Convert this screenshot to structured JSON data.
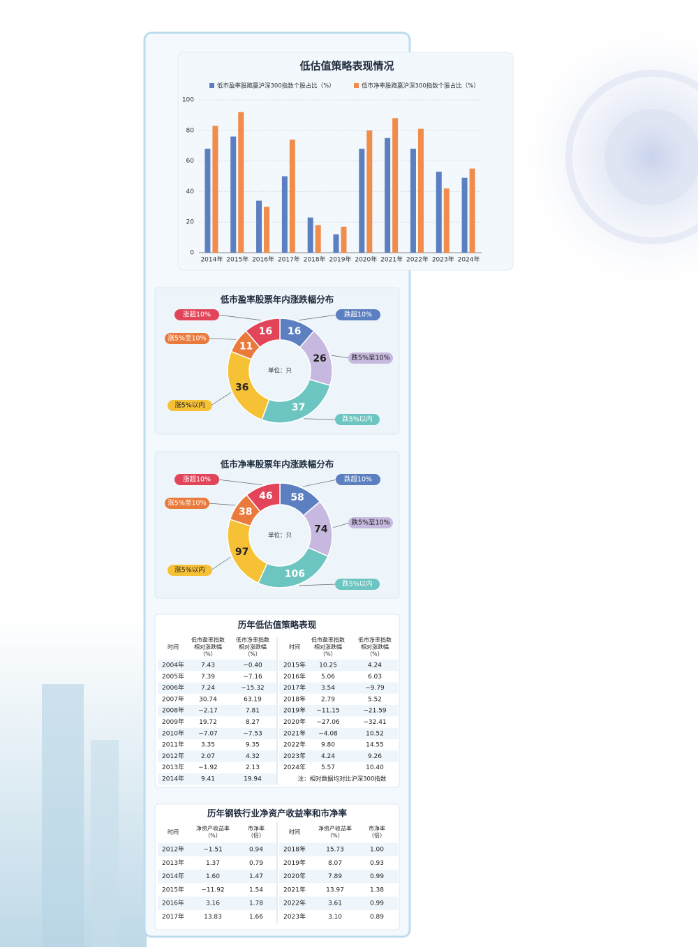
{
  "chart_data": [
    {
      "type": "bar",
      "title": "低估值策略表现情况",
      "categories": [
        "2014年",
        "2015年",
        "2016年",
        "2017年",
        "2018年",
        "2019年",
        "2020年",
        "2021年",
        "2022年",
        "2023年",
        "2024年"
      ],
      "series": [
        {
          "name": "低市盈率股跑赢沪深300指数个股占比（%）",
          "color": "#5b7fc0",
          "values": [
            68,
            76,
            34,
            50,
            23,
            12,
            68,
            75,
            68,
            53,
            49
          ]
        },
        {
          "name": "低市净率股跑赢沪深300指数个股占比（%）",
          "color": "#f08c4c",
          "values": [
            83,
            92,
            30,
            74,
            18,
            17,
            80,
            88,
            81,
            42,
            55
          ]
        }
      ],
      "ylim": [
        0,
        100
      ],
      "yticks": [
        0,
        20,
        40,
        60,
        80,
        100
      ],
      "grid": true,
      "legend": "top"
    },
    {
      "type": "donut",
      "title": "低市盈率股票年内涨跌幅分布",
      "center_label": "单位：只",
      "categories": [
        "跌超10%",
        "跌5%至10%",
        "跌5%以内",
        "涨5%以内",
        "涨5%至10%",
        "涨超10%"
      ],
      "values": [
        16,
        26,
        37,
        36,
        11,
        16
      ],
      "colors": [
        "#5b7fc0",
        "#c6b8de",
        "#6cc5c0",
        "#f7c136",
        "#ea7a3c",
        "#e2455a"
      ]
    },
    {
      "type": "donut",
      "title": "低市净率股票年内涨跌幅分布",
      "center_label": "单位：只",
      "categories": [
        "跌超10%",
        "跌5%至10%",
        "跌5%以内",
        "涨5%以内",
        "涨5%至10%",
        "涨超10%"
      ],
      "values": [
        58,
        74,
        106,
        97,
        38,
        46
      ],
      "colors": [
        "#5b7fc0",
        "#c6b8de",
        "#6cc5c0",
        "#f7c136",
        "#ea7a3c",
        "#e2455a"
      ]
    }
  ],
  "tables": [
    {
      "title": "历年低估值策略表现",
      "columns": [
        [
          "时间"
        ],
        [
          "低市盈率指数",
          "相对涨跌幅",
          "（%）"
        ],
        [
          "低市净率指数",
          "相对涨跌幅",
          "（%）"
        ]
      ],
      "left_rows": [
        [
          "2004年",
          "7.43",
          "−0.40"
        ],
        [
          "2005年",
          "7.39",
          "−7.16"
        ],
        [
          "2006年",
          "7.24",
          "−15.32"
        ],
        [
          "2007年",
          "30.74",
          "63.19"
        ],
        [
          "2008年",
          "−2.17",
          "7.81"
        ],
        [
          "2009年",
          "19.72",
          "8.27"
        ],
        [
          "2010年",
          "−7.07",
          "−7.53"
        ],
        [
          "2011年",
          "3.35",
          "9.35"
        ],
        [
          "2012年",
          "2.07",
          "4.32"
        ],
        [
          "2013年",
          "−1.92",
          "2.13"
        ],
        [
          "2014年",
          "9.41",
          "19.94"
        ]
      ],
      "right_rows": [
        [
          "2015年",
          "10.25",
          "4.24"
        ],
        [
          "2016年",
          "5.06",
          "6.03"
        ],
        [
          "2017年",
          "3.54",
          "−9.79"
        ],
        [
          "2018年",
          "2.79",
          "5.52"
        ],
        [
          "2019年",
          "−11.15",
          "−21.59"
        ],
        [
          "2020年",
          "−27.06",
          "−32.41"
        ],
        [
          "2021年",
          "−4.08",
          "10.52"
        ],
        [
          "2022年",
          "9.80",
          "14.55"
        ],
        [
          "2023年",
          "4.24",
          "9.26"
        ],
        [
          "2024年",
          "5.57",
          "10.40"
        ]
      ],
      "note": "注：相对数据均对比沪深300指数"
    },
    {
      "title": "历年钢铁行业净资产收益率和市净率",
      "columns": [
        [
          "时间"
        ],
        [
          "净资产收益率",
          "（%）"
        ],
        [
          "市净率",
          "（倍）"
        ]
      ],
      "left_rows": [
        [
          "2012年",
          "−1.51",
          "0.94"
        ],
        [
          "2013年",
          "1.37",
          "0.79"
        ],
        [
          "2014年",
          "1.60",
          "1.47"
        ],
        [
          "2015年",
          "−11.92",
          "1.54"
        ],
        [
          "2016年",
          "3.16",
          "1.78"
        ],
        [
          "2017年",
          "13.83",
          "1.66"
        ]
      ],
      "right_rows": [
        [
          "2018年",
          "15.73",
          "1.00"
        ],
        [
          "2019年",
          "8.07",
          "0.93"
        ],
        [
          "2020年",
          "7.89",
          "0.99"
        ],
        [
          "2021年",
          "13.97",
          "1.38"
        ],
        [
          "2022年",
          "3.61",
          "0.99"
        ],
        [
          "2023年",
          "3.10",
          "0.89"
        ]
      ]
    }
  ]
}
